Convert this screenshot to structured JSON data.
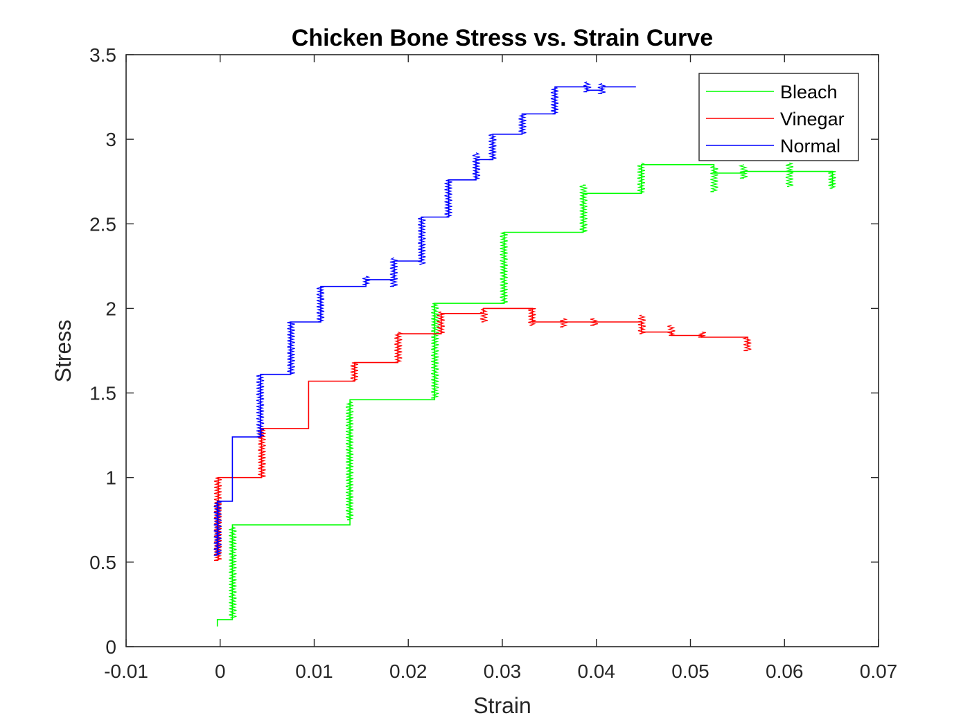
{
  "chart_data": {
    "type": "line",
    "title": "Chicken Bone Stress vs. Strain Curve",
    "xlabel": "Strain",
    "ylabel": "Stress",
    "xlim": [
      -0.01,
      0.07
    ],
    "ylim": [
      0,
      3.5
    ],
    "xticks": [
      -0.01,
      0,
      0.01,
      0.02,
      0.03,
      0.04,
      0.05,
      0.06,
      0.07
    ],
    "xtick_labels": [
      "-0.01",
      "0",
      "0.01",
      "0.02",
      "0.03",
      "0.04",
      "0.05",
      "0.06",
      "0.07"
    ],
    "yticks": [
      0,
      0.5,
      1,
      1.5,
      2,
      2.5,
      3,
      3.5
    ],
    "ytick_labels": [
      "0",
      "0.5",
      "1",
      "1.5",
      "2",
      "2.5",
      "3",
      "3.5"
    ],
    "grid": false,
    "legend_position": "top-right",
    "series": [
      {
        "name": "Bleach",
        "color": "#00ff00",
        "points": [
          [
            -0.0003,
            0.12
          ],
          [
            -0.0003,
            0.16
          ],
          [
            0.0013,
            0.16
          ],
          [
            0.0013,
            0.72
          ],
          [
            0.0138,
            0.72
          ],
          [
            0.0138,
            1.46
          ],
          [
            0.0228,
            1.46
          ],
          [
            0.0228,
            2.03
          ],
          [
            0.0302,
            2.03
          ],
          [
            0.0302,
            2.45
          ],
          [
            0.0386,
            2.45
          ],
          [
            0.0386,
            2.68
          ],
          [
            0.0448,
            2.68
          ],
          [
            0.0448,
            2.85
          ],
          [
            0.0525,
            2.85
          ],
          [
            0.0525,
            2.8
          ],
          [
            0.0557,
            2.8
          ],
          [
            0.0557,
            2.81
          ],
          [
            0.0605,
            2.81
          ],
          [
            0.0605,
            2.81
          ],
          [
            0.0651,
            2.81
          ],
          [
            0.0651,
            2.72
          ]
        ],
        "noisy_segments": [
          [
            0.0013,
            0.17,
            0.71
          ],
          [
            0.0138,
            0.75,
            1.45
          ],
          [
            0.0228,
            1.47,
            2.03
          ],
          [
            0.0302,
            2.03,
            2.45
          ],
          [
            0.0386,
            2.45,
            2.73
          ],
          [
            0.0448,
            2.68,
            2.86
          ],
          [
            0.0525,
            2.69,
            2.84
          ],
          [
            0.0557,
            2.77,
            2.85
          ],
          [
            0.0605,
            2.72,
            2.86
          ],
          [
            0.0651,
            2.71,
            2.81
          ]
        ]
      },
      {
        "name": "Vinegar",
        "color": "#ff0000",
        "points": [
          [
            -0.0002,
            0.51
          ],
          [
            -0.0002,
            1.0
          ],
          [
            0.0044,
            1.0
          ],
          [
            0.0044,
            1.29
          ],
          [
            0.0094,
            1.29
          ],
          [
            0.0094,
            1.57
          ],
          [
            0.0143,
            1.57
          ],
          [
            0.0143,
            1.68
          ],
          [
            0.0189,
            1.68
          ],
          [
            0.0189,
            1.85
          ],
          [
            0.0235,
            1.85
          ],
          [
            0.0235,
            1.97
          ],
          [
            0.028,
            1.97
          ],
          [
            0.028,
            2.0
          ],
          [
            0.0332,
            2.0
          ],
          [
            0.0332,
            1.92
          ],
          [
            0.0365,
            1.92
          ],
          [
            0.0398,
            1.92
          ],
          [
            0.0448,
            1.92
          ],
          [
            0.0448,
            1.86
          ],
          [
            0.048,
            1.86
          ],
          [
            0.048,
            1.84
          ],
          [
            0.0512,
            1.84
          ],
          [
            0.0512,
            1.83
          ],
          [
            0.0561,
            1.83
          ],
          [
            0.0561,
            1.77
          ]
        ],
        "noisy_segments": [
          [
            -0.0002,
            0.51,
            1.0
          ],
          [
            0.0044,
            1.0,
            1.29
          ],
          [
            0.0143,
            1.57,
            1.68
          ],
          [
            0.0189,
            1.68,
            1.86
          ],
          [
            0.0235,
            1.85,
            1.98
          ],
          [
            0.028,
            1.92,
            2.0
          ],
          [
            0.0332,
            1.9,
            2.0
          ],
          [
            0.0365,
            1.89,
            1.94
          ],
          [
            0.0398,
            1.9,
            1.94
          ],
          [
            0.0448,
            1.85,
            1.96
          ],
          [
            0.048,
            1.84,
            1.9
          ],
          [
            0.0512,
            1.83,
            1.86
          ],
          [
            0.0561,
            1.75,
            1.83
          ]
        ]
      },
      {
        "name": "Normal",
        "color": "#0000ff",
        "points": [
          [
            -0.0003,
            0.54
          ],
          [
            -0.0003,
            0.86
          ],
          [
            0.0013,
            0.86
          ],
          [
            0.0013,
            1.24
          ],
          [
            0.0043,
            1.24
          ],
          [
            0.0043,
            1.61
          ],
          [
            0.0075,
            1.61
          ],
          [
            0.0075,
            1.92
          ],
          [
            0.0107,
            1.92
          ],
          [
            0.0107,
            2.13
          ],
          [
            0.0155,
            2.13
          ],
          [
            0.0155,
            2.17
          ],
          [
            0.0185,
            2.17
          ],
          [
            0.0185,
            2.28
          ],
          [
            0.0214,
            2.28
          ],
          [
            0.0214,
            2.54
          ],
          [
            0.0243,
            2.54
          ],
          [
            0.0243,
            2.76
          ],
          [
            0.0272,
            2.76
          ],
          [
            0.0272,
            2.88
          ],
          [
            0.029,
            2.88
          ],
          [
            0.029,
            3.03
          ],
          [
            0.0321,
            3.03
          ],
          [
            0.0321,
            3.15
          ],
          [
            0.0356,
            3.15
          ],
          [
            0.0356,
            3.31
          ],
          [
            0.039,
            3.31
          ],
          [
            0.039,
            3.29
          ],
          [
            0.0406,
            3.29
          ],
          [
            0.0406,
            3.31
          ],
          [
            0.0442,
            3.31
          ]
        ],
        "noisy_segments": [
          [
            -0.0003,
            0.54,
            0.86
          ],
          [
            0.0043,
            1.24,
            1.61
          ],
          [
            0.0075,
            1.61,
            1.92
          ],
          [
            0.0107,
            1.92,
            2.13
          ],
          [
            0.0155,
            2.14,
            2.19
          ],
          [
            0.0185,
            2.13,
            2.3
          ],
          [
            0.0214,
            2.26,
            2.54
          ],
          [
            0.0243,
            2.54,
            2.76
          ],
          [
            0.0272,
            2.76,
            2.92
          ],
          [
            0.029,
            2.88,
            3.03
          ],
          [
            0.0321,
            3.03,
            3.15
          ],
          [
            0.0356,
            3.15,
            3.31
          ],
          [
            0.039,
            3.28,
            3.34
          ],
          [
            0.0406,
            3.27,
            3.33
          ]
        ]
      }
    ]
  }
}
